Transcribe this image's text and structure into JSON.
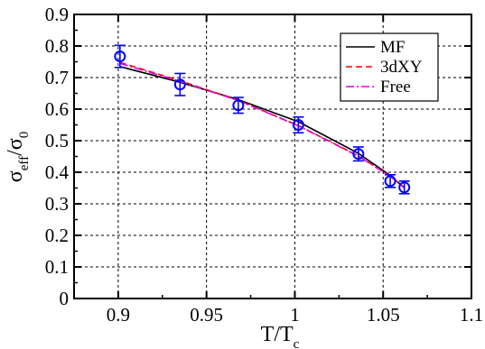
{
  "chart_data": {
    "type": "line",
    "xlim": [
      0.875,
      1.1
    ],
    "ylim": [
      0,
      0.9
    ],
    "x_ticks": [
      "0.9",
      "0.95",
      "1",
      "1.05",
      "1.1"
    ],
    "y_ticks": [
      "0",
      "0.1",
      "0.2",
      "0.3",
      "0.4",
      "0.5",
      "0.6",
      "0.7",
      "0.8",
      "0.9"
    ],
    "x_tick_values": [
      0.9,
      0.95,
      1.0,
      1.05,
      1.1
    ],
    "y_tick_values": [
      0,
      0.1,
      0.2,
      0.3,
      0.4,
      0.5,
      0.6,
      0.7,
      0.8,
      0.9
    ],
    "xlabel": {
      "main": "T/T",
      "sub": "c"
    },
    "ylabel": {
      "p1": "σ",
      "s1": "eff",
      "p2": "/σ",
      "s2": "0"
    },
    "grid": true,
    "legend_position": "top-right",
    "series": [
      {
        "name": "MF",
        "color": "#000000",
        "dash": "",
        "x": [
          0.901,
          0.935,
          0.968,
          1.002,
          1.036,
          1.054,
          1.062
        ],
        "y": [
          0.735,
          0.685,
          0.63,
          0.56,
          0.46,
          0.39,
          0.35
        ]
      },
      {
        "name": "3dXY",
        "color": "#ff0000",
        "dash": "7,4",
        "x": [
          0.901,
          0.935,
          0.968,
          1.002,
          1.036,
          1.054,
          1.062
        ],
        "y": [
          0.748,
          0.69,
          0.628,
          0.548,
          0.452,
          0.388,
          0.352
        ]
      },
      {
        "name": "Free",
        "color": "#e000e0",
        "dash": "9,3,2,3",
        "x": [
          0.901,
          0.935,
          0.968,
          1.002,
          1.036,
          1.054,
          1.062
        ],
        "y": [
          0.745,
          0.688,
          0.627,
          0.547,
          0.451,
          0.387,
          0.351
        ]
      }
    ],
    "points": {
      "color": "#0000ff",
      "x": [
        0.901,
        0.935,
        0.968,
        1.002,
        1.036,
        1.054,
        1.062
      ],
      "y": [
        0.767,
        0.678,
        0.612,
        0.55,
        0.458,
        0.372,
        0.352
      ],
      "err": [
        0.035,
        0.035,
        0.025,
        0.025,
        0.022,
        0.02,
        0.02
      ]
    }
  }
}
